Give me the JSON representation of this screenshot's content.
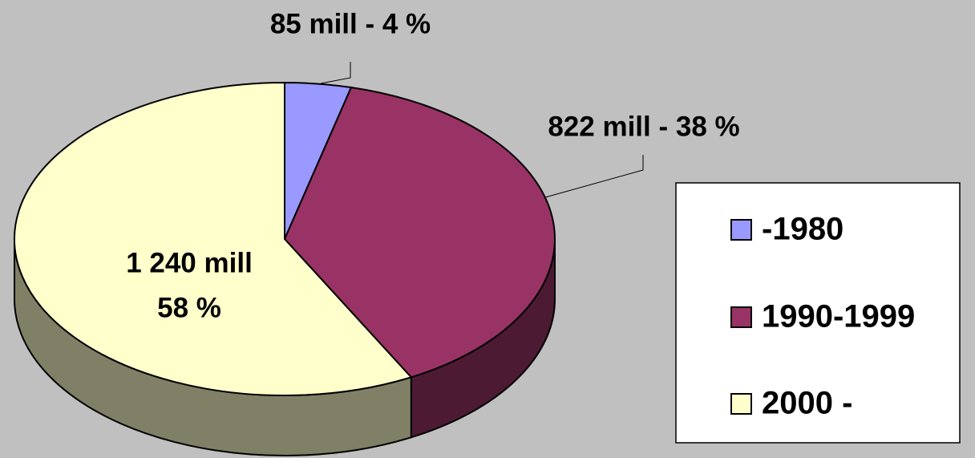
{
  "chart_data": {
    "type": "pie",
    "categories": [
      "-1980",
      "1990-1999",
      "2000 -"
    ],
    "values": [
      85,
      822,
      1240
    ],
    "value_labels": [
      [
        "85 mill - 4 %"
      ],
      [
        "822 mill - 38 %"
      ],
      [
        "1 240 mill",
        "58 %"
      ]
    ],
    "colors": [
      "#9999ff",
      "#993366",
      "#ffffcc"
    ],
    "legend": "right"
  }
}
